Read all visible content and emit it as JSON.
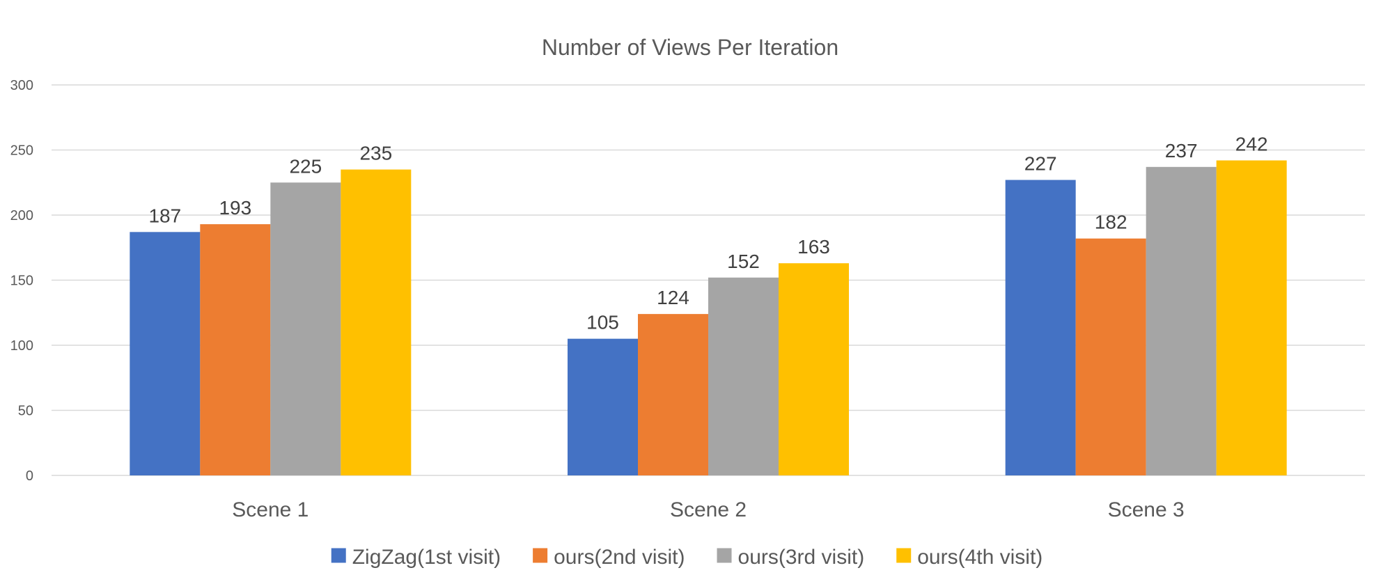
{
  "chart_data": {
    "type": "bar",
    "title": "Number of Views Per Iteration",
    "xlabel": "",
    "ylabel": "",
    "categories": [
      "Scene 1",
      "Scene 2",
      "Scene 3"
    ],
    "series": [
      {
        "name": "ZigZag(1st visit)",
        "values": [
          187,
          105,
          227
        ]
      },
      {
        "name": "ours(2nd visit)",
        "values": [
          193,
          124,
          182
        ]
      },
      {
        "name": "ours(3rd visit)",
        "values": [
          225,
          152,
          237
        ]
      },
      {
        "name": "ours(4th visit)",
        "values": [
          235,
          163,
          242
        ]
      }
    ],
    "ylim": [
      0,
      300
    ],
    "yticks": [
      0,
      50,
      100,
      150,
      200,
      250,
      300
    ],
    "grid": true,
    "legend_position": "bottom",
    "colors": [
      "#4472C4",
      "#ED7D31",
      "#A5A5A5",
      "#FFC000"
    ],
    "gridline_color": "#D9D9D9",
    "data_labels": true
  }
}
